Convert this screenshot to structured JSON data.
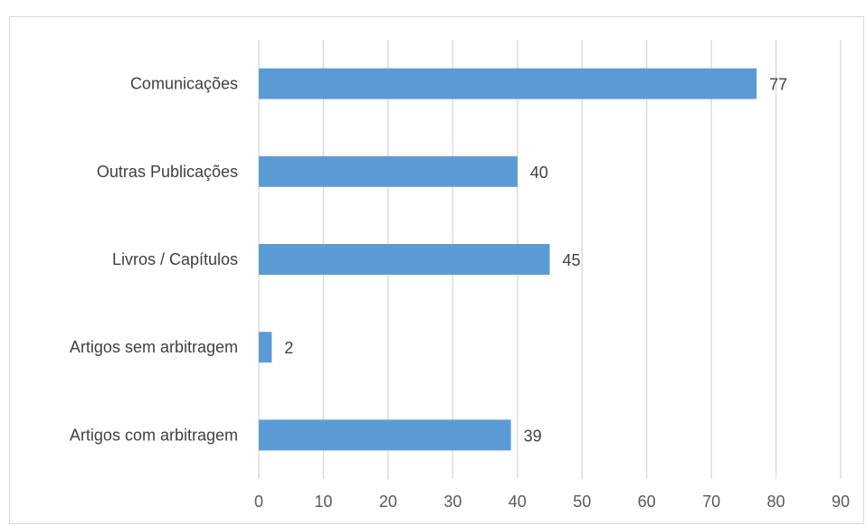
{
  "chart_data": {
    "type": "bar",
    "orientation": "horizontal",
    "title": "",
    "xlabel": "",
    "ylabel": "",
    "categories": [
      "Comunicações",
      "Outras Publicações",
      "Livros / Capítulos",
      "Artigos sem arbitragem",
      "Artigos com arbitragem"
    ],
    "values": [
      77,
      40,
      45,
      2,
      39
    ],
    "xlim": [
      0,
      90
    ],
    "xticks": [
      "0",
      "10",
      "20",
      "30",
      "40",
      "50",
      "60",
      "70",
      "80",
      "90"
    ],
    "grid": "vertical",
    "legend": "none",
    "bar_color": "#5b9bd5"
  }
}
